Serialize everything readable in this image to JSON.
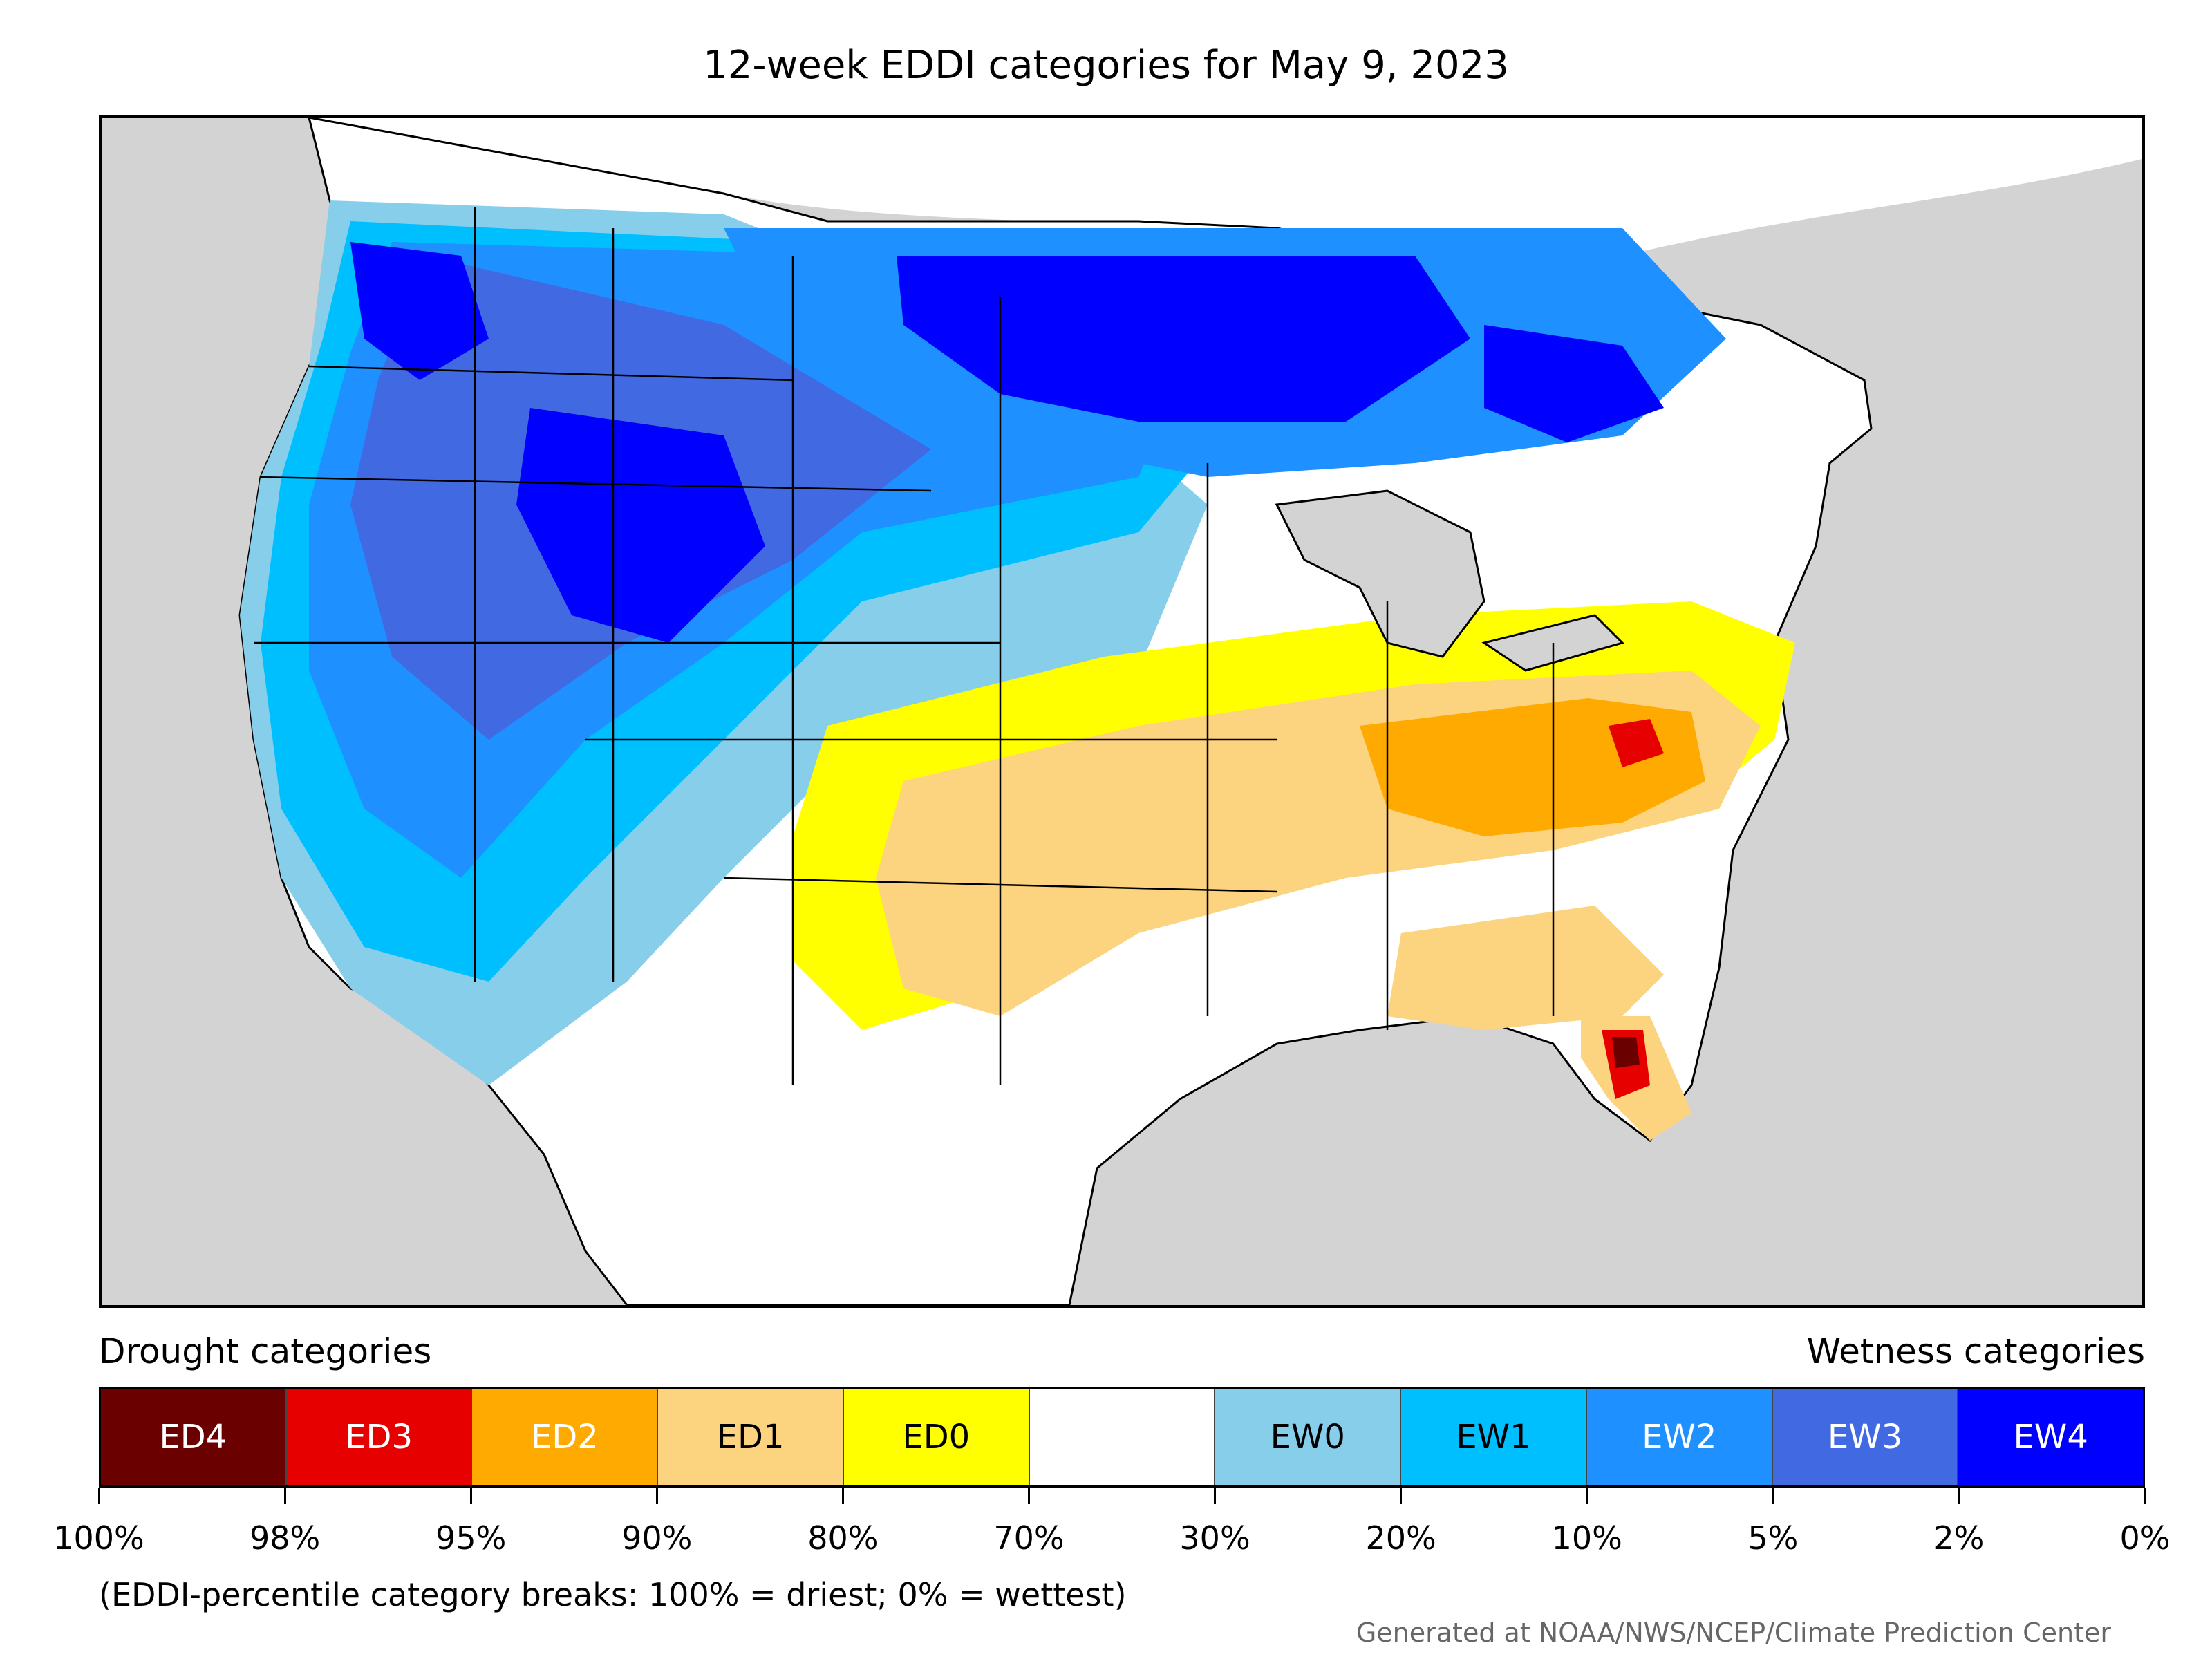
{
  "title": "12-week EDDI categories for May 9, 2023",
  "map": {
    "background_color": "#d3d3d3",
    "regions": [
      {
        "name": "pacific-northwest-wet",
        "category": "EW4"
      },
      {
        "name": "northern-plains-wet",
        "category": "EW4"
      },
      {
        "name": "great-basin-wet",
        "category": "EW3"
      },
      {
        "name": "central-plains-dry",
        "category": "ED0"
      },
      {
        "name": "ohio-valley-dry",
        "category": "ED2"
      },
      {
        "name": "florida-dry",
        "category": "ED4"
      },
      {
        "name": "southwest-texas-dry",
        "category": "ED1"
      }
    ]
  },
  "legend": {
    "drought_heading": "Drought categories",
    "wetness_heading": "Wetness categories",
    "categories": [
      {
        "label": "ED4",
        "color": "#6b0000",
        "text_color": "#ffffff"
      },
      {
        "label": "ED3",
        "color": "#e60000",
        "text_color": "#ffffff"
      },
      {
        "label": "ED2",
        "color": "#ffaa00",
        "text_color": "#ffffff"
      },
      {
        "label": "ED1",
        "color": "#fcd37f",
        "text_color": "#000000"
      },
      {
        "label": "ED0",
        "color": "#ffff00",
        "text_color": "#000000"
      },
      {
        "label": "",
        "color": "#ffffff",
        "text_color": "#000000"
      },
      {
        "label": "EW0",
        "color": "#87ceeb",
        "text_color": "#000000"
      },
      {
        "label": "EW1",
        "color": "#00bfff",
        "text_color": "#000000"
      },
      {
        "label": "EW2",
        "color": "#1e90ff",
        "text_color": "#ffffff"
      },
      {
        "label": "EW3",
        "color": "#4169e1",
        "text_color": "#ffffff"
      },
      {
        "label": "EW4",
        "color": "#0000ff",
        "text_color": "#ffffff"
      }
    ],
    "ticks": [
      "100%",
      "98%",
      "95%",
      "90%",
      "80%",
      "70%",
      "30%",
      "20%",
      "10%",
      "5%",
      "2%",
      "0%"
    ]
  },
  "note": "(EDDI-percentile category breaks: 100% = driest; 0% = wettest)",
  "credit": "Generated at NOAA/NWS/NCEP/Climate Prediction Center"
}
